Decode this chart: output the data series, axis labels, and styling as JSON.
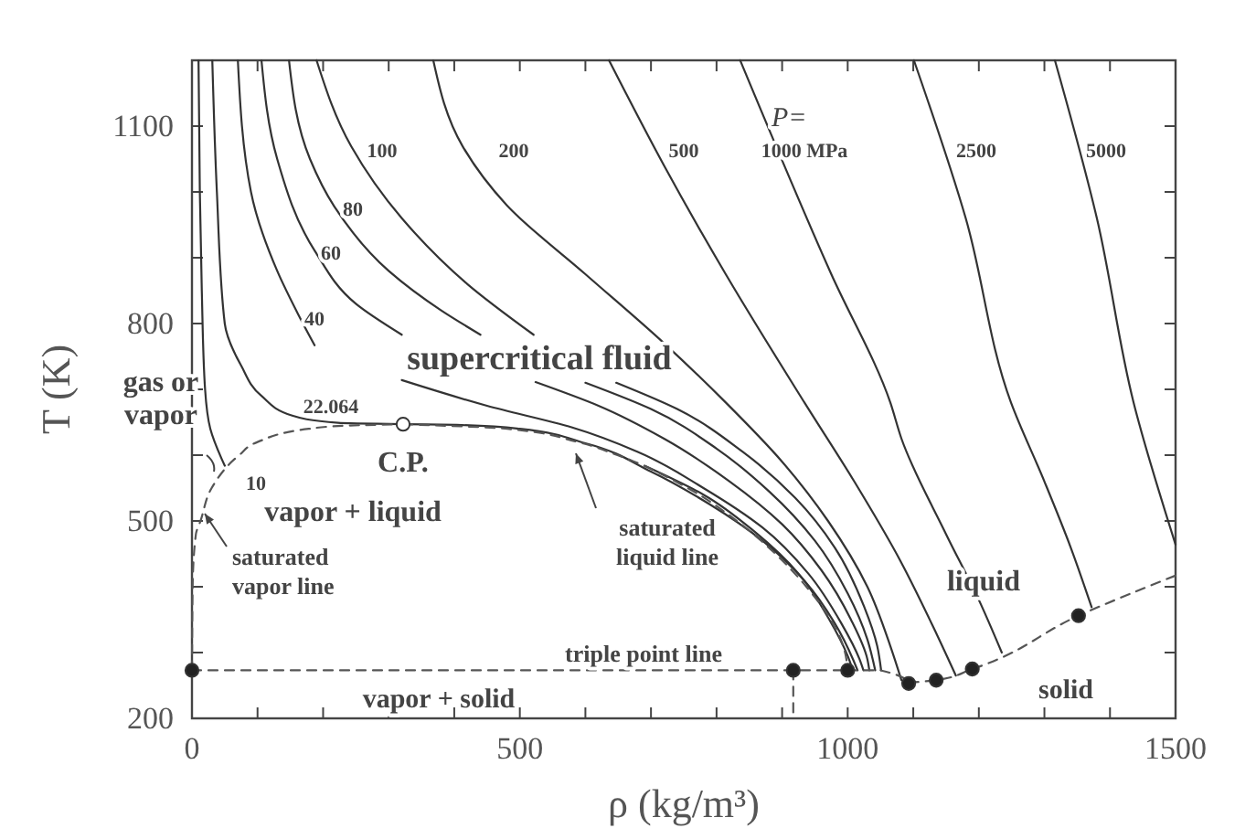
{
  "chart_data": {
    "type": "line",
    "xlabel": "ρ (kg/m³)",
    "ylabel": "T (K)",
    "xlim": [
      0,
      1500
    ],
    "ylim": [
      200,
      1200
    ],
    "xticks": [
      0,
      {
        "value": 100,
        "label": null
      },
      {
        "value": 200,
        "label": null
      },
      {
        "value": 300,
        "label": null
      },
      {
        "value": 400,
        "label": null
      },
      500,
      {
        "value": 600,
        "label": null
      },
      {
        "value": 700,
        "label": null
      },
      {
        "value": 800,
        "label": null
      },
      {
        "value": 900,
        "label": null
      },
      1000,
      {
        "value": 1100,
        "label": null
      },
      {
        "value": 1200,
        "label": null
      },
      {
        "value": 1300,
        "label": null
      },
      {
        "value": 1400,
        "label": null
      },
      1500
    ],
    "yticks": [
      200,
      {
        "value": 300,
        "label": null
      },
      {
        "value": 400,
        "label": null
      },
      500,
      {
        "value": 600,
        "label": null
      },
      {
        "value": 700,
        "label": null
      },
      800,
      {
        "value": 900,
        "label": null
      },
      {
        "value": 1000,
        "label": null
      },
      1100
    ],
    "annotations": [
      "P=",
      "gas or vapor",
      "supercritical fluid",
      "vapor + liquid",
      "liquid",
      "solid",
      "vapor + solid",
      {
        "text": "C.P.",
        "x": 322,
        "y": 647
      }
    ],
    "series": [
      {
        "name": "10",
        "color": "#333333",
        "x": [
          10,
          12,
          15,
          20,
          28,
          45,
          50,
          584,
          690,
          780,
          860,
          925,
          972,
          1000,
          1008
        ],
        "values": [
          1200,
          1000,
          850,
          700,
          640,
          595,
          584,
          null,
          584,
          540,
          482,
          420,
          350,
          295,
          273
        ]
      },
      {
        "name": "22.064",
        "color": "#333333",
        "x": [
          31,
          38,
          50,
          75,
          106,
          153,
          223,
          322,
          404,
          500,
          600,
          700,
          790,
          870,
          935,
          980,
          1008,
          1015
        ],
        "values": [
          1200,
          1000,
          800,
          736,
          690,
          660,
          649,
          647,
          646,
          640,
          618,
          575,
          525,
          470,
          408,
          345,
          290,
          273
        ]
      },
      {
        "name": "40",
        "color": "#333333",
        "x": [
          70,
          90,
          130,
          162,
          187,
          250,
          320,
          450,
          580,
          680,
          780,
          870,
          940,
          990,
          1018,
          1024
        ],
        "values": [
          1200,
          1000,
          880,
          814,
          767,
          null,
          714,
          675,
          642,
          605,
          550,
          490,
          420,
          345,
          290,
          273
        ]
      },
      {
        "name": "60",
        "color": "#333333",
        "x": [
          106,
          130,
          187,
          250,
          320,
          420,
          524,
          620,
          720,
          820,
          900,
          960,
          1005,
          1030,
          1033
        ],
        "values": [
          1200,
          1050,
          911,
          830,
          783,
          null,
          711,
          675,
          625,
          560,
          495,
          425,
          350,
          290,
          273
        ]
      },
      {
        "name": "80",
        "color": "#333333",
        "x": [
          148,
          180,
          217,
          300,
          380,
          440,
          520,
          600,
          700,
          800,
          880,
          950,
          1000,
          1030,
          1042
        ],
        "values": [
          1200,
          1050,
          978,
          880,
          820,
          783,
          null,
          710,
          670,
          610,
          545,
          470,
          390,
          320,
          273
        ]
      },
      {
        "name": "100",
        "color": "#333333",
        "x": [
          190,
          243,
          320,
          420,
          521,
          580,
          647,
          740,
          840,
          920,
          980,
          1025,
          1045,
          1051
        ],
        "values": [
          1200,
          1069,
          960,
          860,
          783,
          null,
          710,
          670,
          605,
          535,
          460,
          370,
          310,
          273
        ]
      },
      {
        "name": "200",
        "color": "#333333",
        "x": [
          368,
          413,
          480,
          600,
          720,
          814,
          900,
          970,
          1030,
          1065,
          1082
        ],
        "values": [
          1200,
          1069,
          980,
          875,
          770,
          680,
          590,
          500,
          400,
          310,
          258
        ]
      },
      {
        "name": "500",
        "color": "#333333",
        "x": [
          636,
          720,
          814,
          934,
          1010,
          1080,
          1130,
          1165
        ],
        "values": [
          1200,
          1040,
          875,
          680,
          560,
          440,
          340,
          265
        ]
      },
      {
        "name": "1000 MPa",
        "color": "#333333",
        "x": [
          836,
          975,
          1065,
          1082,
          1150,
          1200,
          1235
        ],
        "values": [
          1200,
          875,
          680,
          625,
          480,
          380,
          300
        ]
      },
      {
        "name": "2500",
        "color": "#333333",
        "x": [
          1101,
          1180,
          1249,
          1300,
          1340,
          1372
        ],
        "values": [
          1200,
          960,
          680,
          560,
          460,
          369
        ]
      },
      {
        "name": "5000",
        "color": "#333333",
        "x": [
          1316,
          1380,
          1436,
          1500
        ],
        "values": [
          1200,
          960,
          680,
          464
        ]
      },
      {
        "name": "saturated vapor line",
        "color": "#555555",
        "line_style": "dashed",
        "x": [
          0,
          1,
          6,
          13,
          30,
          72,
          100,
          178,
          240,
          322
        ],
        "values": [
          273,
          400,
          480,
          500,
          550,
          600,
          620,
          640,
          645,
          647
        ]
      },
      {
        "name": "saturated liquid line",
        "color": "#555555",
        "line_style": "dashed",
        "x": [
          322,
          481,
          588,
          649,
          756,
          831,
          890,
          937,
          974,
          996,
          1000
        ],
        "values": [
          647,
          640,
          620,
          600,
          550,
          500,
          450,
          400,
          350,
          300,
          273
        ]
      },
      {
        "name": "triple point line",
        "color": "#555555",
        "line_style": "dashed",
        "x": [
          0,
          1000
        ],
        "values": [
          273,
          273
        ]
      },
      {
        "color": "#555555",
        "line_style": "dashed",
        "x": [
          1000,
          1050,
          1093,
          1135,
          1190,
          1352,
          1500
        ],
        "values": [
          273,
          273,
          253,
          258,
          275,
          356,
          417
        ]
      },
      {
        "color": "#555555",
        "line_style": "dashed",
        "x": [
          917,
          917
        ],
        "values": [
          273,
          200
        ]
      },
      {
        "type": "scatter",
        "marker": "circle",
        "color": "#222222",
        "x": [
          0,
          917,
          1000,
          1093,
          1135,
          1190,
          1352
        ],
        "values": [
          273,
          273,
          273,
          253,
          258,
          275,
          356
        ]
      },
      {
        "type": "scatter",
        "marker": "circle",
        "color": "#ffffff",
        "x": [
          322
        ],
        "values": [
          647
        ]
      }
    ]
  }
}
